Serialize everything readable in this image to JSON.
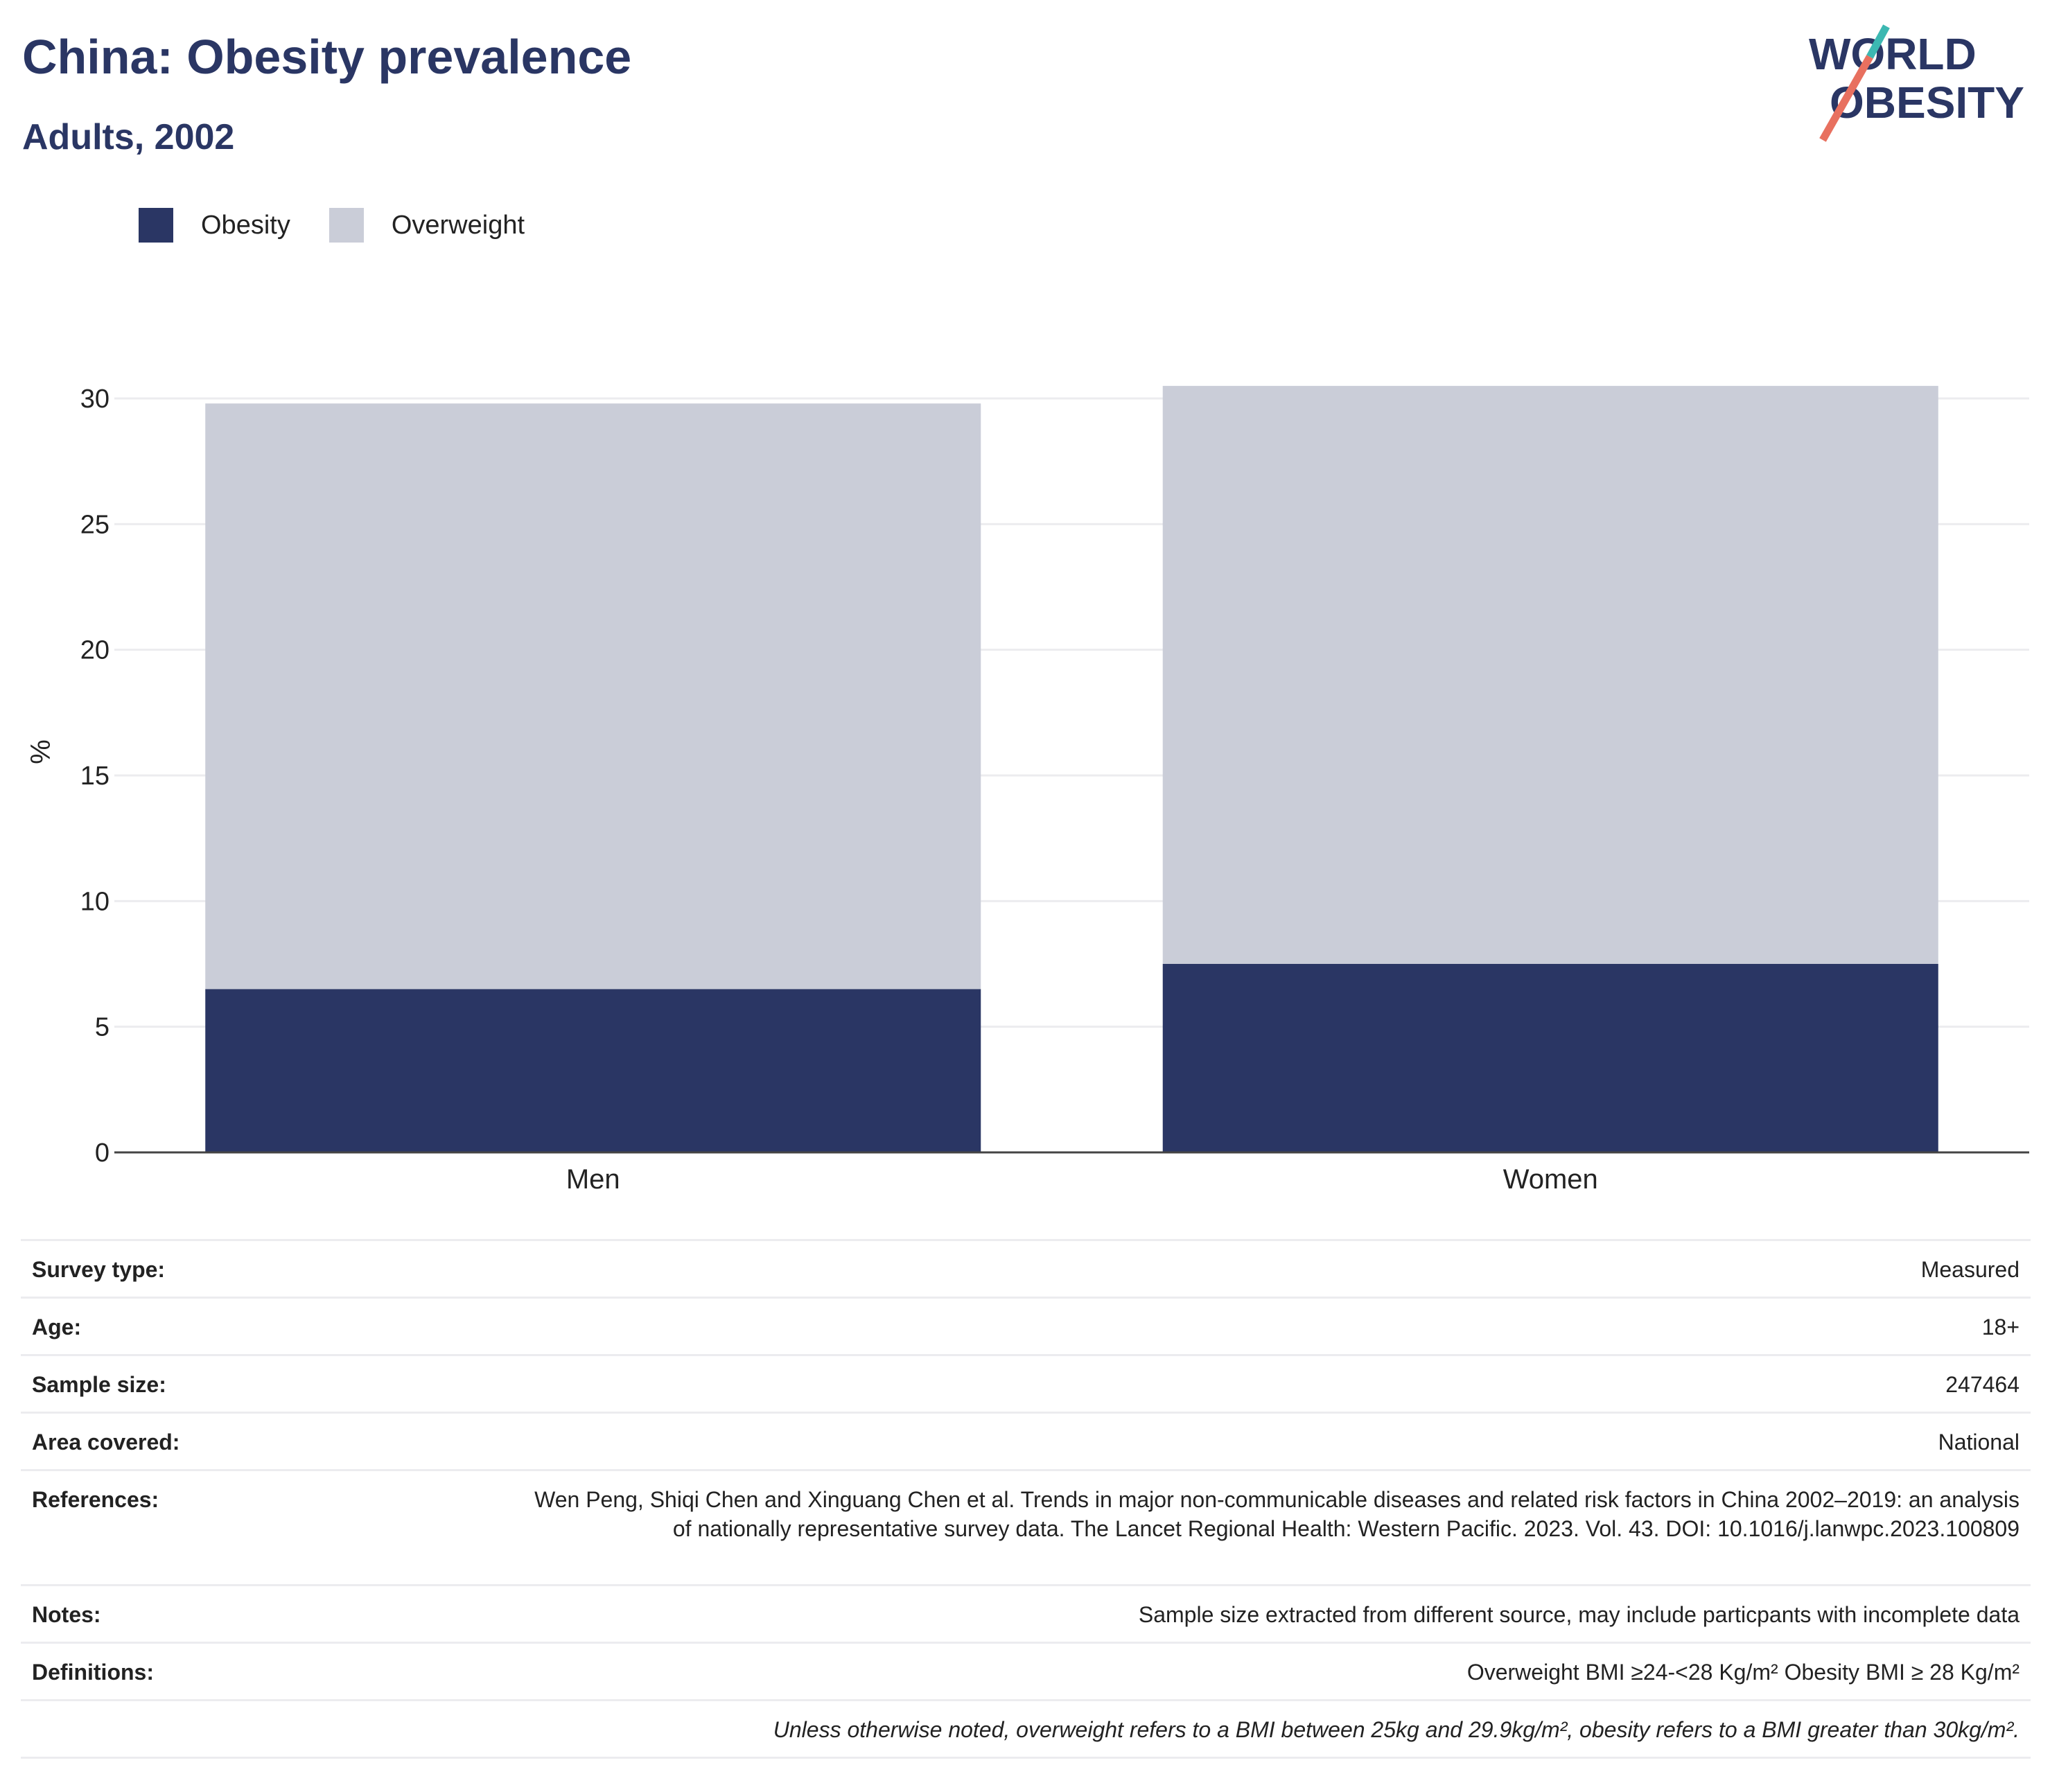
{
  "header": {
    "title": "China: Obesity prevalence",
    "subtitle": "Adults, 2002"
  },
  "logo": {
    "line1": "WORLD",
    "line2": "OBESITY",
    "slash_colors": [
      "#3cb8b2",
      "#e8705f"
    ]
  },
  "legend": [
    {
      "label": "Obesity",
      "color": "#2a3664"
    },
    {
      "label": "Overweight",
      "color": "#cacdd8"
    }
  ],
  "chart_data": {
    "type": "bar",
    "stacked": true,
    "categories": [
      "Men",
      "Women"
    ],
    "series": [
      {
        "name": "Obesity",
        "values": [
          6.5,
          7.5
        ],
        "color": "#2a3664"
      },
      {
        "name": "Overweight",
        "values": [
          23.3,
          23.0
        ],
        "color": "#cacdd8"
      }
    ],
    "ylabel": "%",
    "xlabel": "",
    "ylim": [
      0,
      31
    ],
    "yticks": [
      0,
      5,
      10,
      15,
      20,
      25,
      30
    ],
    "grid": true,
    "legend_position": "top-left"
  },
  "details": {
    "rows": [
      {
        "key": "Survey type:",
        "value": "Measured"
      },
      {
        "key": "Age:",
        "value": "18+"
      },
      {
        "key": "Sample size:",
        "value": "247464"
      },
      {
        "key": "Area covered:",
        "value": "National"
      },
      {
        "key": "References:",
        "value": "Wen Peng, Shiqi Chen and Xinguang Chen et al. Trends in major non-communicable diseases and related risk factors in China 2002–2019: an analysis of nationally representative survey data. The Lancet Regional Health: Western Pacific. 2023. Vol. 43. DOI: 10.1016/j.lanwpc.2023.100809"
      },
      {
        "key": "Notes:",
        "value": "Sample size extracted from different source, may include particpants with incomplete data"
      },
      {
        "key": "Definitions:",
        "value": "Overweight BMI ≥24-<28 Kg/m² Obesity BMI ≥ 28 Kg/m²"
      }
    ],
    "footnote": "Unless otherwise noted, overweight refers to a BMI between 25kg and 29.9kg/m², obesity refers to a BMI greater than 30kg/m²."
  }
}
